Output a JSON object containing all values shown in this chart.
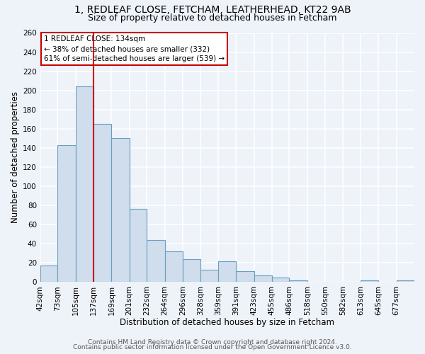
{
  "title1": "1, REDLEAF CLOSE, FETCHAM, LEATHERHEAD, KT22 9AB",
  "title2": "Size of property relative to detached houses in Fetcham",
  "xlabel": "Distribution of detached houses by size in Fetcham",
  "ylabel": "Number of detached properties",
  "footer1": "Contains HM Land Registry data © Crown copyright and database right 2024.",
  "footer2": "Contains public sector information licensed under the Open Government Licence v3.0.",
  "bin_labels": [
    "42sqm",
    "73sqm",
    "105sqm",
    "137sqm",
    "169sqm",
    "201sqm",
    "232sqm",
    "264sqm",
    "296sqm",
    "328sqm",
    "359sqm",
    "391sqm",
    "423sqm",
    "455sqm",
    "486sqm",
    "518sqm",
    "550sqm",
    "582sqm",
    "613sqm",
    "645sqm",
    "677sqm"
  ],
  "bar_heights": [
    17,
    143,
    204,
    165,
    150,
    76,
    44,
    32,
    24,
    13,
    22,
    11,
    7,
    5,
    2,
    0,
    0,
    0,
    2,
    0,
    2
  ],
  "bar_color": "#cfdded",
  "bar_edge_color": "#6a9fc0",
  "reference_line_x": 137,
  "bin_edges": [
    42,
    73,
    105,
    137,
    169,
    201,
    232,
    264,
    296,
    328,
    359,
    391,
    423,
    455,
    486,
    518,
    550,
    582,
    613,
    645,
    677,
    709
  ],
  "annotation_title": "1 REDLEAF CLOSE: 134sqm",
  "annotation_line1": "← 38% of detached houses are smaller (332)",
  "annotation_line2": "61% of semi-detached houses are larger (539) →",
  "ylim": [
    0,
    260
  ],
  "yticks": [
    0,
    20,
    40,
    60,
    80,
    100,
    120,
    140,
    160,
    180,
    200,
    220,
    240,
    260
  ],
  "background_color": "#eef2f9",
  "grid_color": "#ffffff",
  "ref_line_color": "#cc0000",
  "title1_fontsize": 10,
  "title2_fontsize": 9,
  "axis_label_fontsize": 8.5,
  "tick_fontsize": 7.5,
  "annotation_fontsize": 7.5,
  "footer_fontsize": 6.5
}
